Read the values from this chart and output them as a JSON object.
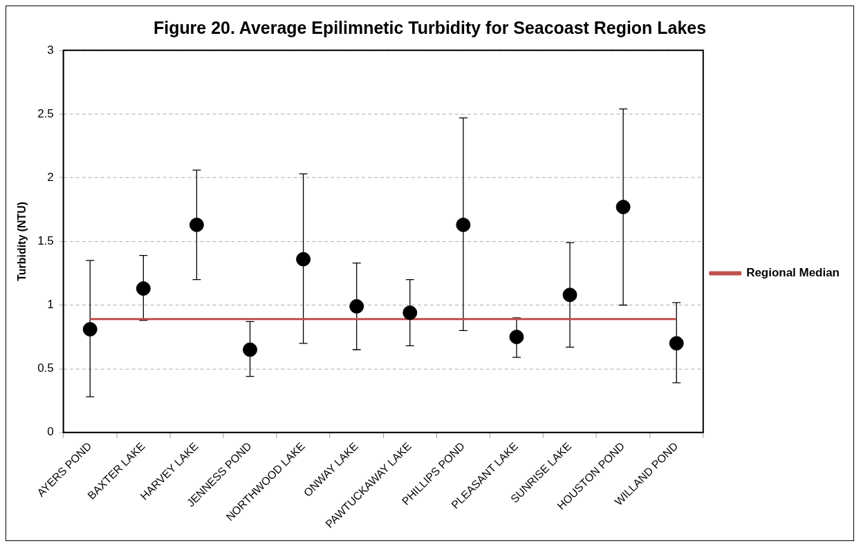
{
  "chart_data": {
    "type": "scatter",
    "title": "Figure 20. Average Epilimnetic Turbidity for Seacoast Region Lakes",
    "ylabel": "Turbidity (NTU)",
    "categories": [
      "AYERS POND",
      "BAXTER LAKE",
      "HARVEY LAKE",
      "JENNESS POND",
      "NORTHWOOD LAKE",
      "ONWAY LAKE",
      "PAWTUCKAWAY LAKE",
      "PHILLIPS POND",
      "PLEASANT LAKE",
      "SUNRISE LAKE",
      "HOUSTON POND",
      "WILLAND POND"
    ],
    "series": [
      {
        "marker": "circle",
        "color": "#000000",
        "values": [
          0.81,
          1.13,
          1.63,
          0.65,
          1.36,
          0.99,
          0.94,
          1.63,
          0.75,
          1.08,
          1.77,
          0.7
        ],
        "errors": [
          [
            0.28,
            1.35
          ],
          [
            0.88,
            1.39
          ],
          [
            1.2,
            2.06
          ],
          [
            0.44,
            0.87
          ],
          [
            0.7,
            2.03
          ],
          [
            0.65,
            1.33
          ],
          [
            0.68,
            1.2
          ],
          [
            0.8,
            2.47
          ],
          [
            0.59,
            0.9
          ],
          [
            0.67,
            1.49
          ],
          [
            1.0,
            2.54
          ],
          [
            0.39,
            1.02
          ]
        ]
      },
      {
        "type": "line",
        "marker": "none",
        "name": "Regional Median",
        "color": "#c0504d",
        "values": [
          0.89,
          0.89,
          0.89,
          0.89,
          0.89,
          0.89,
          0.89,
          0.89,
          0.89,
          0.89,
          0.89,
          0.89
        ]
      }
    ],
    "ylim": [
      0,
      3
    ],
    "yticks": [
      0,
      0.5,
      1,
      1.5,
      2,
      2.5,
      3
    ],
    "grid": "y",
    "legend": "right",
    "line_style": "solid"
  }
}
